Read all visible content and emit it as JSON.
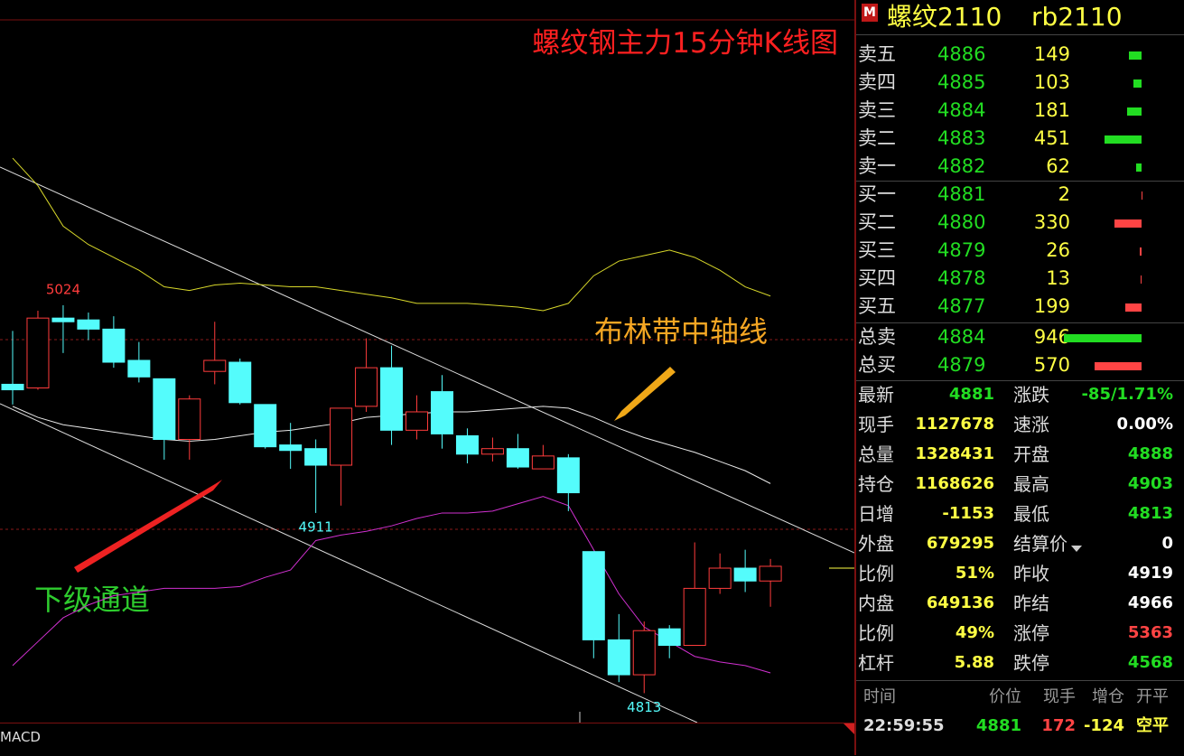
{
  "chart_data": {
    "type": "candlestick",
    "title": "螺纹钢主力15分钟K线图",
    "annotations": [
      "布林带中轴线",
      "下级通道"
    ],
    "price_labels": [
      5024,
      4911,
      4813
    ],
    "indicator_label": "MACD",
    "ylim": [
      4797,
      5190
    ],
    "up_color": "#ff3c3c",
    "down_color": "#54fcfc",
    "candles": [
      {
        "open": 4981,
        "high": 5010,
        "low": 4970,
        "close": 4978
      },
      {
        "open": 4979,
        "high": 5021,
        "low": 4978,
        "close": 5017
      },
      {
        "open": 5017,
        "high": 5024,
        "low": 4998,
        "close": 5015
      },
      {
        "open": 5016,
        "high": 5020,
        "low": 5005,
        "close": 5011
      },
      {
        "open": 5011,
        "high": 5018,
        "low": 4990,
        "close": 4993
      },
      {
        "open": 4994,
        "high": 5004,
        "low": 4982,
        "close": 4985
      },
      {
        "open": 4984,
        "high": 4984,
        "low": 4940,
        "close": 4951
      },
      {
        "open": 4951,
        "high": 4975,
        "low": 4940,
        "close": 4973
      },
      {
        "open": 4988,
        "high": 5015,
        "low": 4981,
        "close": 4994
      },
      {
        "open": 4993,
        "high": 4995,
        "low": 4970,
        "close": 4971
      },
      {
        "open": 4970,
        "high": 4970,
        "low": 4946,
        "close": 4947
      },
      {
        "open": 4948,
        "high": 4960,
        "low": 4935,
        "close": 4945
      },
      {
        "open": 4946,
        "high": 4951,
        "low": 4911,
        "close": 4937
      },
      {
        "open": 4937,
        "high": 4968,
        "low": 4915,
        "close": 4968
      },
      {
        "open": 4969,
        "high": 5006,
        "low": 4966,
        "close": 4990
      },
      {
        "open": 4990,
        "high": 5002,
        "low": 4948,
        "close": 4956
      },
      {
        "open": 4956,
        "high": 4975,
        "low": 4951,
        "close": 4966
      },
      {
        "open": 4977,
        "high": 4986,
        "low": 4946,
        "close": 4954
      },
      {
        "open": 4953,
        "high": 4957,
        "low": 4938,
        "close": 4943
      },
      {
        "open": 4943,
        "high": 4952,
        "low": 4939,
        "close": 4946
      },
      {
        "open": 4946,
        "high": 4954,
        "low": 4935,
        "close": 4936
      },
      {
        "open": 4935,
        "high": 4948,
        "low": 4935,
        "close": 4942
      },
      {
        "open": 4941,
        "high": 4943,
        "low": 4912,
        "close": 4922
      },
      {
        "open": 4890,
        "high": 4890,
        "low": 4832,
        "close": 4842
      },
      {
        "open": 4842,
        "high": 4856,
        "low": 4819,
        "close": 4823
      },
      {
        "open": 4823,
        "high": 4852,
        "low": 4813,
        "close": 4847
      },
      {
        "open": 4848,
        "high": 4850,
        "low": 4832,
        "close": 4839
      },
      {
        "open": 4839,
        "high": 4895,
        "low": 4839,
        "close": 4870
      },
      {
        "open": 4870,
        "high": 4889,
        "low": 4867,
        "close": 4881
      },
      {
        "open": 4881,
        "high": 4891,
        "low": 4868,
        "close": 4874
      },
      {
        "open": 4874,
        "high": 4886,
        "low": 4860,
        "close": 4882
      }
    ],
    "lines": [
      {
        "color": "#d8d82a",
        "values": [
          5104,
          5089,
          5067,
          5057,
          5050,
          5043,
          5034,
          5032,
          5035,
          5036,
          5035,
          5034,
          5034,
          5032,
          5030,
          5028,
          5025,
          5025,
          5025,
          5024,
          5023,
          5021,
          5025,
          5040,
          5048,
          5051,
          5054,
          5050,
          5043,
          5034,
          5029
        ]
      },
      {
        "color": "#e8e8e8",
        "values": [
          4969,
          4963,
          4959,
          4957,
          4955,
          4953,
          4951,
          4950,
          4951,
          4953,
          4955,
          4956,
          4958,
          4960,
          4963,
          4964,
          4965,
          4966,
          4966,
          4967,
          4968,
          4969,
          4968,
          4963,
          4957,
          4952,
          4948,
          4944,
          4939,
          4934,
          4927
        ]
      },
      {
        "color": "#d030d0",
        "values": [
          4828,
          4841,
          4854,
          4861,
          4866,
          4868,
          4870,
          4870,
          4870,
          4871,
          4876,
          4880,
          4896,
          4899,
          4901,
          4904,
          4908,
          4911,
          4911,
          4912,
          4916,
          4920,
          4915,
          4891,
          4867,
          4849,
          4841,
          4833,
          4830,
          4828,
          4824
        ]
      }
    ]
  },
  "header": {
    "marker": "M",
    "symbol": "螺纹2110",
    "code": "rb2110"
  },
  "order_book": {
    "asks": [
      {
        "label": "卖五",
        "price": 4886,
        "volume": 149
      },
      {
        "label": "卖四",
        "price": 4885,
        "volume": 103
      },
      {
        "label": "卖三",
        "price": 4884,
        "volume": 181
      },
      {
        "label": "卖二",
        "price": 4883,
        "volume": 451
      },
      {
        "label": "卖一",
        "price": 4882,
        "volume": 62
      }
    ],
    "bids": [
      {
        "label": "买一",
        "price": 4881,
        "volume": 2
      },
      {
        "label": "买二",
        "price": 4880,
        "volume": 330
      },
      {
        "label": "买三",
        "price": 4879,
        "volume": 26
      },
      {
        "label": "买四",
        "price": 4878,
        "volume": 13
      },
      {
        "label": "买五",
        "price": 4877,
        "volume": 199
      }
    ],
    "totals": [
      {
        "label": "总卖",
        "price": 4884,
        "volume": 946
      },
      {
        "label": "总买",
        "price": 4879,
        "volume": 570
      }
    ]
  },
  "stats": [
    [
      {
        "label": "最新",
        "value": 4881,
        "color": "#22dd22"
      },
      {
        "label": "涨跌",
        "value": "-85/1.71%",
        "color": "#22dd22"
      }
    ],
    [
      {
        "label": "现手",
        "value": 1127678,
        "color": "#ffff44"
      },
      {
        "label": "速涨",
        "value": "0.00%",
        "color": "#ffffff"
      }
    ],
    [
      {
        "label": "总量",
        "value": 1328431,
        "color": "#ffff44"
      },
      {
        "label": "开盘",
        "value": 4888,
        "color": "#22dd22"
      }
    ],
    [
      {
        "label": "持仓",
        "value": 1168626,
        "color": "#ffff44"
      },
      {
        "label": "最高",
        "value": 4903,
        "color": "#22dd22"
      }
    ],
    [
      {
        "label": "日增",
        "value": -1153,
        "color": "#ffff44"
      },
      {
        "label": "最低",
        "value": 4813,
        "color": "#22dd22"
      }
    ],
    [
      {
        "label": "外盘",
        "value": 679295,
        "color": "#ffff44"
      },
      {
        "label": "结算价",
        "value": 0,
        "color": "#ffffff"
      }
    ],
    [
      {
        "label": "比例",
        "value": "51%",
        "color": "#ffff44"
      },
      {
        "label": "昨收",
        "value": 4919,
        "color": "#ffffff"
      }
    ],
    [
      {
        "label": "内盘",
        "value": 649136,
        "color": "#ffff44"
      },
      {
        "label": "昨结",
        "value": 4966,
        "color": "#ffffff"
      }
    ],
    [
      {
        "label": "比例",
        "value": "49%",
        "color": "#ffff44"
      },
      {
        "label": "涨停",
        "value": 5363,
        "color": "#ff4444"
      }
    ],
    [
      {
        "label": "杠杆",
        "value": 5.88,
        "color": "#ffff44"
      },
      {
        "label": "跌停",
        "value": 4568,
        "color": "#22dd22"
      }
    ]
  ],
  "trades": {
    "columns": [
      "时间",
      "价位",
      "现手",
      "增仓",
      "开平"
    ],
    "rows": [
      [
        "22:59:55",
        4881,
        172,
        -124,
        "空平"
      ]
    ]
  }
}
